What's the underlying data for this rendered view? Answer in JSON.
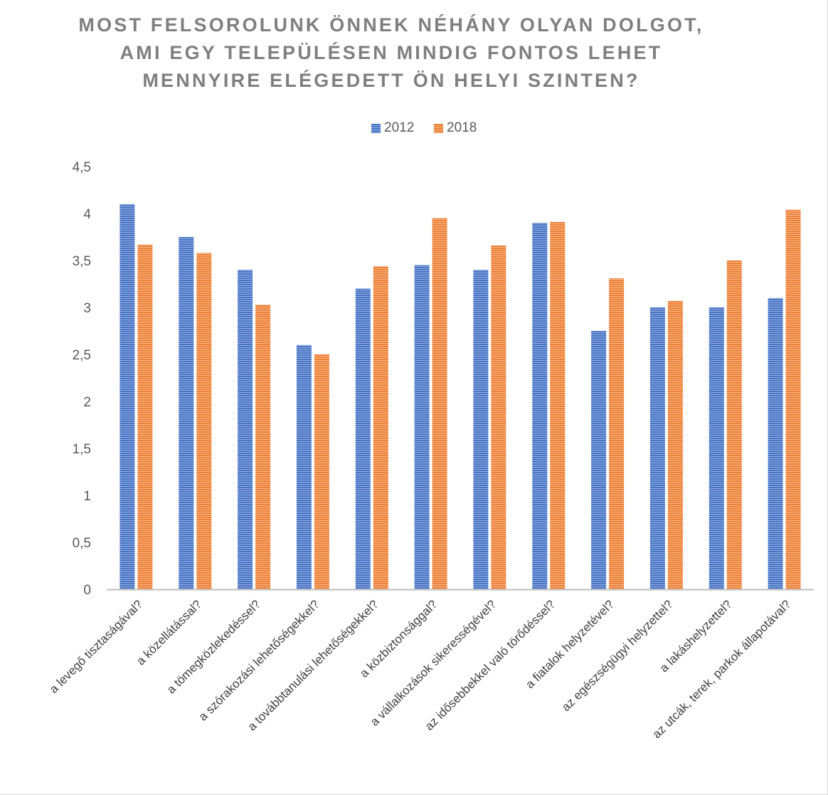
{
  "chart_data": {
    "type": "bar",
    "title_lines": [
      "MOST FELSOROLUNK ÖNNEK NÉHÁNY OLYAN DOLGOT,",
      "AMI EGY TELEPÜLÉSEN MINDIG FONTOS LEHET",
      "MENNYIRE ELÉGEDETT ÖN HELYI SZINTEN?"
    ],
    "categories": [
      "a levegő tisztaságával?",
      "a közellátással?",
      "a tömegközlekedéssel?",
      "a szórakozási lehetőségekkel?",
      "a továbbtanulási lehetőségekkel?",
      "a közbiztonsággal?",
      "a vállalkozások sikerességével?",
      "az idősebbekkel való törődéssel?",
      "a fiatalok helyzetével?",
      "az egészségügyi helyzettel?",
      "a lakáshelyzettel?",
      "az utcák, terek, parkok állapotával?"
    ],
    "series": [
      {
        "name": "2012",
        "color": "#4472c4",
        "values": [
          4.1,
          3.75,
          3.4,
          2.6,
          3.2,
          3.45,
          3.4,
          3.9,
          2.75,
          3.0,
          3.0,
          3.1
        ]
      },
      {
        "name": "2018",
        "color": "#ed7d31",
        "values": [
          3.67,
          3.58,
          3.03,
          2.5,
          3.44,
          3.95,
          3.66,
          3.91,
          3.31,
          3.07,
          3.5,
          4.04
        ]
      }
    ],
    "y_ticks": [
      "0",
      "0,5",
      "1",
      "1,5",
      "2",
      "2,5",
      "3",
      "3,5",
      "4",
      "4,5"
    ],
    "ylim": [
      0,
      4.5
    ],
    "legend_position": "top-center",
    "grid": false
  }
}
